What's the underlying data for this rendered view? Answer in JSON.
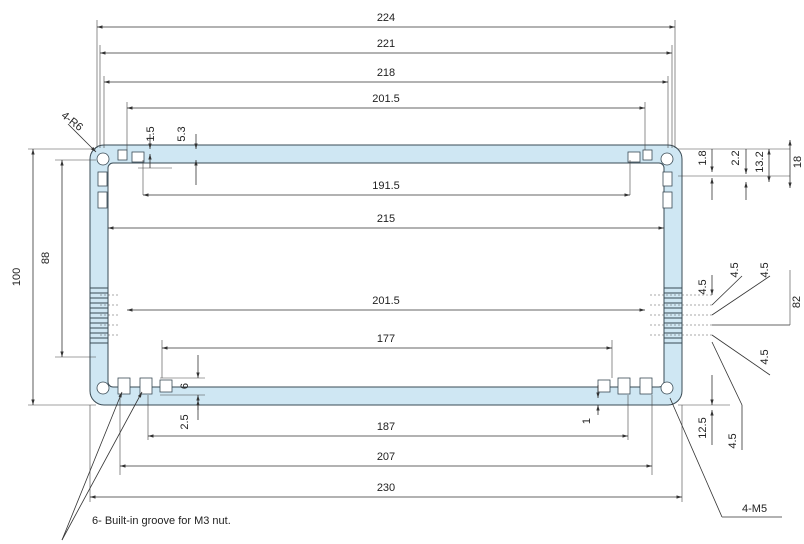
{
  "drawing": {
    "dims": {
      "w224": "224",
      "w221": "221",
      "w218": "218",
      "w201_5_top": "201.5",
      "w191_5": "191.5",
      "w215": "215",
      "w201_5_bottom": "201.5",
      "w177": "177",
      "w187": "187",
      "w207": "207",
      "w230": "230",
      "h100": "100",
      "h88": "88",
      "d1_5": "1.5",
      "d5_3": "5.3",
      "d1_8": "1.8",
      "d2_2": "2.2",
      "d13_2": "13.2",
      "d18": "18",
      "d82": "82",
      "d4_5_a": "4.5",
      "d4_5_b": "4.5",
      "d4_5_c": "4.5",
      "d4_5_d": "4.5",
      "d4_5_e": "4.5",
      "d12_5": "12.5",
      "d6": "6",
      "d2_5": "2.5",
      "d1": "1"
    },
    "labels": {
      "corner_radius": "4-R6",
      "screw": "4-M5",
      "note": "6- Built-in groove for M3 nut."
    }
  }
}
